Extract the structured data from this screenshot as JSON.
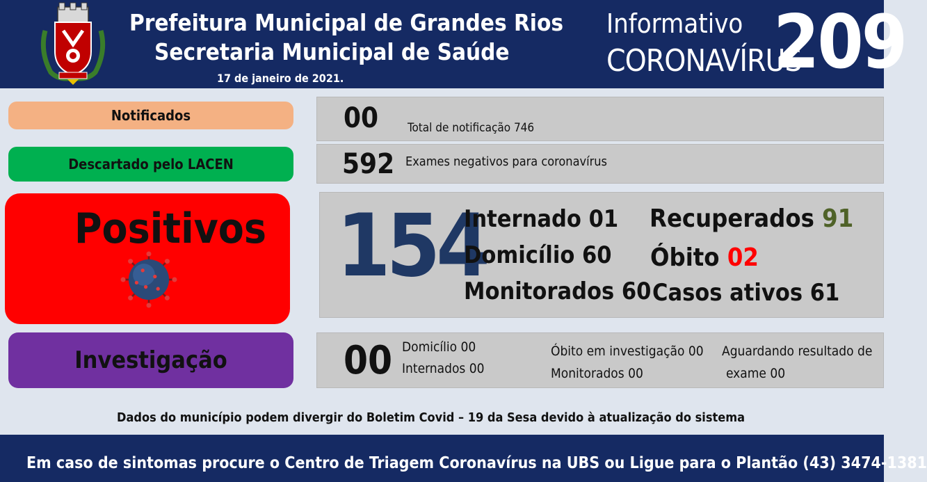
{
  "header": {
    "title_line1": "Prefeitura Municipal de Grandes Rios",
    "title_line2": "Secretaria Municipal de Saúde",
    "date": "17 de janeiro  de 2021.",
    "informativo": "Informativo",
    "coronavirus": "CORONAVÍRUS",
    "number": "209",
    "logo_icon": "municipal-coat-of-arms"
  },
  "colors": {
    "header_bg": "#152a63",
    "notificados": "#f4b183",
    "descartado": "#00b050",
    "positivos": "#ff0000",
    "investigacao": "#7030a0",
    "recovered_value": "#4f6228",
    "death_value": "#ff0000",
    "big_number": "#1f3864"
  },
  "notificados": {
    "label": "Notificados",
    "value": "00",
    "detail": "Total de notificação 746"
  },
  "descartado": {
    "label": "Descartado  pelo LACEN",
    "value": "592",
    "detail": "Exames negativos  para coronavírus"
  },
  "positivos": {
    "label": "Positivos",
    "icon": "virus-icon",
    "value": "154",
    "internado": "Internado 01",
    "domicilio": "Domicílio 60",
    "monitorados": "Monitorados 60",
    "recuperados_label": "Recuperados",
    "recuperados_value": "91",
    "obito_label": "Óbito",
    "obito_value": "02",
    "casos_ativos": "Casos ativos 61"
  },
  "investigacao": {
    "label": "Investigação",
    "value": "00",
    "domicilio": "Domicílio 00",
    "internados": "Internados 00",
    "obito": "Óbito  em investigação 00",
    "monitorados": "Monitorados 00",
    "aguardando_1": "Aguardando resultado de",
    "aguardando_2": "exame 00"
  },
  "disclaimer": "Dados do município podem divergir do Boletim Covid – 19 da Sesa devido à atualização do sistema",
  "footer": "Em caso de sintomas procure o Centro de Triagem Coronavírus na UBS ou Ligue para o Plantão (43) 3474-1381"
}
